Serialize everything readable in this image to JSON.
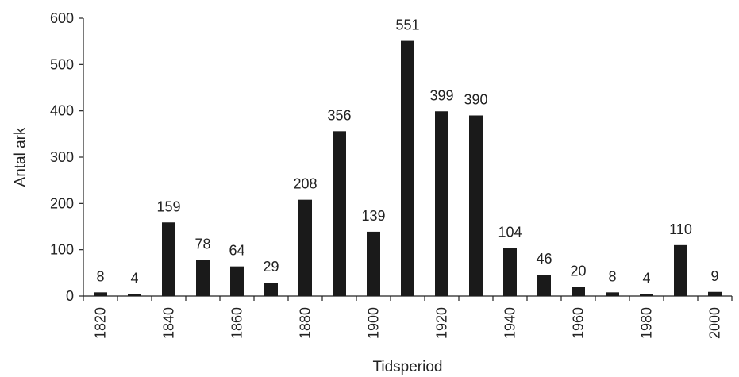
{
  "chart_data": {
    "type": "bar",
    "xlabel": "Tidsperiod",
    "ylabel": "Antal ark",
    "ylim": [
      0,
      600
    ],
    "yticks": [
      0,
      100,
      200,
      300,
      400,
      500,
      600
    ],
    "categories": [
      "1820",
      "1830",
      "1840",
      "1850",
      "1860",
      "1870",
      "1880",
      "1890",
      "1900",
      "1910",
      "1920",
      "1930",
      "1940",
      "1950",
      "1960",
      "1970",
      "1980",
      "1990",
      "2000"
    ],
    "tick_labels": [
      "1820",
      "",
      "1840",
      "",
      "1860",
      "",
      "1880",
      "",
      "1900",
      "",
      "1920",
      "",
      "1940",
      "",
      "1960",
      "",
      "1980",
      "",
      "2000"
    ],
    "values": [
      8,
      4,
      159,
      78,
      64,
      29,
      208,
      356,
      139,
      551,
      399,
      390,
      104,
      46,
      20,
      8,
      4,
      110,
      9
    ],
    "bar_color": "#1a1a1a",
    "grid": false,
    "data_labels": true
  }
}
